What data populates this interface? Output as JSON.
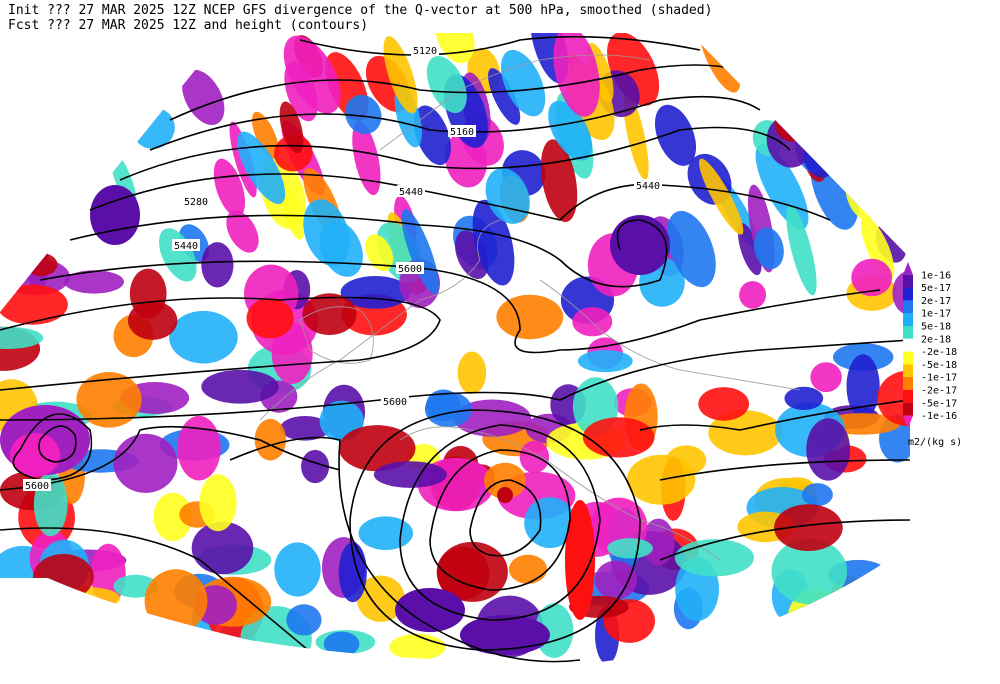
{
  "header": {
    "line1": "Init  ??? 27 MAR 2025 12Z  NCEP GFS divergence of the Q-vector at 500 hPa, smoothed (shaded)",
    "line2": "Fcst ??? 27 MAR 2025 12Z  and height (contours)"
  },
  "contour_labels": [
    "5120",
    "5160",
    "5280",
    "5440",
    "5440",
    "5600",
    "5440",
    "5600",
    "5600"
  ],
  "colorbar": {
    "labels": [
      "1e-16",
      "5e-17",
      "2e-17",
      "1e-17",
      "5e-18",
      "2e-18",
      "-2e-18",
      "-5e-18",
      "-1e-17",
      "-2e-17",
      "-5e-17",
      "-1e-16"
    ],
    "colors": [
      "#a020c0",
      "#5a10a8",
      "#2020d0",
      "#1e78f0",
      "#20b0f8",
      "#40e0c8",
      "#ffffff",
      "#ffff20",
      "#ffc400",
      "#ff8000",
      "#ff1010",
      "#c00010",
      "#f020c0"
    ],
    "unit": "m2/(kg s)"
  }
}
